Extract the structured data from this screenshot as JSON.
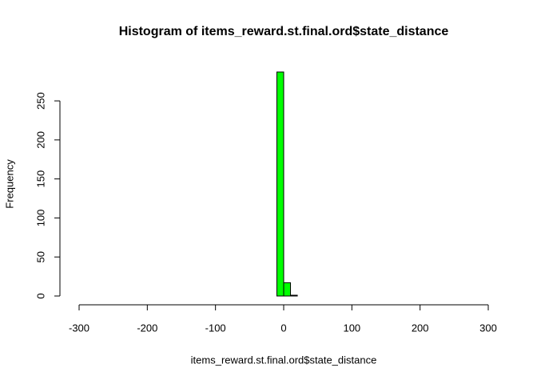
{
  "chart_data": {
    "type": "histogram",
    "title": "Histogram of items_reward.st.final.ord$state_distance",
    "x_label": "items_reward.st.final.ord$state_distance",
    "y_label": "Frequency",
    "bins": [
      -300,
      -290,
      -280,
      -270,
      -260,
      -250,
      -240,
      -230,
      -220,
      -210,
      -200,
      -190,
      -180,
      -170,
      -160,
      -150,
      -140,
      -130,
      -120,
      -110,
      -100,
      -90,
      -80,
      -70,
      -60,
      -50,
      -40,
      -30,
      -20,
      -10,
      0,
      10,
      20,
      30,
      40,
      50,
      60,
      70,
      80,
      90,
      100,
      110,
      120,
      130,
      140,
      150,
      160,
      170,
      180,
      190,
      200,
      210,
      220,
      230,
      240,
      250,
      260,
      270,
      280,
      290,
      300
    ],
    "values": [
      0,
      0,
      0,
      0,
      0,
      0,
      0,
      0,
      0,
      0,
      0,
      0,
      0,
      0,
      0,
      0,
      0,
      0,
      0,
      0,
      0,
      0,
      0,
      0,
      0,
      0,
      0,
      0,
      0,
      287,
      17,
      1,
      0,
      0,
      0,
      0,
      0,
      0,
      0,
      0,
      0,
      0,
      0,
      0,
      0,
      0,
      0,
      0,
      0,
      0,
      0,
      0,
      0,
      0,
      0,
      0,
      0,
      0,
      0,
      0
    ],
    "color": "#00ff00",
    "xlim": [
      -300,
      300
    ],
    "ylim": [
      0,
      287
    ],
    "xticks": [
      -300,
      -200,
      -100,
      0,
      100,
      200,
      300
    ],
    "yticks": [
      0,
      50,
      100,
      150,
      200,
      250
    ]
  }
}
